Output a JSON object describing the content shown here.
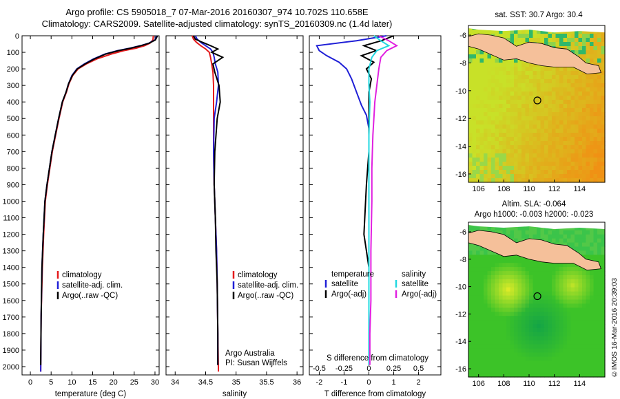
{
  "header": {
    "line1": "Argo profile: CS 5905018_7 07-Mar-2016 20160307_974 10.702S 110.658E",
    "line2": "Climatology: CARS2009. Satellite-adjusted climatology: synTS_20160309.nc (1.4d later)"
  },
  "credit": "©IMOS 16-Mar-2016 20:39:03",
  "colors": {
    "clim": "#e41a1c",
    "sat": "#1f1fd6",
    "argo": "#000000",
    "sat_s": "#22d8e0",
    "argo_s": "#e020e0",
    "land": "#f5c09a"
  },
  "chart_data": [
    {
      "type": "line",
      "id": "temperature",
      "xlabel": "temperature (deg C)",
      "xticks": [
        0,
        5,
        10,
        15,
        20,
        25,
        30
      ],
      "xlim": [
        -2,
        31
      ],
      "yticks": [
        0,
        100,
        200,
        300,
        400,
        500,
        600,
        700,
        800,
        900,
        1000,
        1100,
        1200,
        1300,
        1400,
        1500,
        1600,
        1700,
        1800,
        1900,
        2000
      ],
      "ylim": [
        0,
        2050
      ],
      "y_reversed": true,
      "legend": [
        "climatology",
        "satellite-adj. clim.",
        "Argo(..raw -QC)"
      ],
      "series": [
        {
          "name": "climatology",
          "color": "#e41a1c",
          "x": [
            29.6,
            29.5,
            28.8,
            27.5,
            25.5,
            22.5,
            19.5,
            16.0,
            13.5,
            11.5,
            10.2,
            9.3,
            8.7,
            7.8,
            6.9,
            6.1,
            5.3,
            4.7,
            4.1,
            3.6,
            3.2,
            2.9,
            2.6,
            2.5
          ],
          "y": [
            0,
            25,
            45,
            60,
            75,
            90,
            110,
            140,
            170,
            200,
            240,
            290,
            340,
            400,
            500,
            600,
            700,
            800,
            900,
            1000,
            1200,
            1400,
            1700,
            2030
          ]
        },
        {
          "name": "satellite-adj. clim.",
          "color": "#1f1fd6",
          "x": [
            30.4,
            30.0,
            28.5,
            26.5,
            24.0,
            21.0,
            18.0,
            15.2,
            13.0,
            11.2,
            10.0,
            9.2,
            8.6,
            7.7,
            6.8,
            6.0,
            5.2,
            4.6,
            4.0,
            3.5,
            3.1,
            2.8,
            2.6,
            2.5
          ],
          "y": [
            0,
            25,
            45,
            60,
            75,
            90,
            110,
            140,
            170,
            200,
            240,
            290,
            340,
            400,
            500,
            600,
            700,
            800,
            900,
            1000,
            1200,
            1400,
            1700,
            2030
          ]
        },
        {
          "name": "Argo(..raw -QC)",
          "color": "#000000",
          "x": [
            30.6,
            30.1,
            28.6,
            26.6,
            24.2,
            21.2,
            18.2,
            15.4,
            13.2,
            11.3,
            10.1,
            9.2,
            8.6,
            7.7,
            6.8,
            6.0,
            5.2,
            4.6,
            4.0,
            3.5,
            3.1,
            2.8,
            2.6,
            2.5
          ],
          "y": [
            0,
            25,
            45,
            60,
            75,
            90,
            110,
            140,
            170,
            200,
            240,
            290,
            340,
            400,
            500,
            600,
            700,
            800,
            900,
            1000,
            1200,
            1400,
            1700,
            1990
          ]
        }
      ]
    },
    {
      "type": "line",
      "id": "salinity",
      "xlabel": "salinity",
      "xticks": [
        34,
        34.5,
        35,
        35.5,
        36
      ],
      "xtick_labels": [
        "34",
        "34.5",
        "35",
        "35.5",
        "36"
      ],
      "xlim": [
        33.85,
        36.1
      ],
      "ylim": [
        0,
        2050
      ],
      "y_reversed": true,
      "legend": [
        "climatology",
        "satellite-adj. clim.",
        "Argo(..raw -QC)"
      ],
      "annotations": [
        "Argo Australia",
        "PI: Susan Wijffels"
      ],
      "series": [
        {
          "name": "climatology",
          "color": "#e41a1c",
          "x": [
            34.28,
            34.3,
            34.35,
            34.42,
            34.5,
            34.56,
            34.58,
            34.6,
            34.62,
            34.63,
            34.63,
            34.63,
            34.63,
            34.64,
            34.66,
            34.68,
            34.69,
            34.7,
            34.71
          ],
          "y": [
            0,
            20,
            40,
            60,
            80,
            100,
            130,
            170,
            220,
            300,
            400,
            500,
            700,
            900,
            1100,
            1300,
            1500,
            1800,
            2030
          ]
        },
        {
          "name": "satellite-adj. clim.",
          "color": "#1f1fd6",
          "x": [
            34.33,
            34.36,
            34.42,
            34.5,
            34.58,
            34.62,
            34.64,
            34.66,
            34.7,
            34.71,
            34.68,
            34.64,
            34.63,
            34.64,
            34.66,
            34.68,
            34.69,
            34.7,
            34.7
          ],
          "y": [
            0,
            20,
            40,
            60,
            80,
            100,
            130,
            170,
            220,
            300,
            400,
            500,
            700,
            900,
            1100,
            1300,
            1500,
            1800,
            1990
          ]
        },
        {
          "name": "Argo(..raw -QC)",
          "color": "#000000",
          "x": [
            34.3,
            34.33,
            34.45,
            34.58,
            34.7,
            34.6,
            34.78,
            34.62,
            34.65,
            34.72,
            34.74,
            34.69,
            34.65,
            34.64,
            34.66,
            34.67,
            34.69,
            34.7,
            34.7
          ],
          "y": [
            0,
            20,
            40,
            60,
            80,
            100,
            130,
            170,
            220,
            300,
            400,
            500,
            700,
            900,
            1100,
            1300,
            1500,
            1800,
            1990
          ]
        }
      ]
    },
    {
      "type": "line",
      "id": "difference",
      "xlabel": "T difference from climatology",
      "xlabel_top": "S difference from climatology",
      "xticks": [
        -2,
        -1,
        0,
        1,
        2
      ],
      "xlim": [
        -2.4,
        2.9
      ],
      "xticks_top": [
        -0.5,
        -0.25,
        0,
        0.25,
        0.5
      ],
      "xtick_top_labels": [
        "-0.5",
        "-0.25",
        "0",
        "0.25",
        "0.5"
      ],
      "ylim": [
        0,
        2050
      ],
      "y_reversed": true,
      "legend": {
        "temperature_title": "temperature",
        "salinity_title": "salinity",
        "items": [
          "satellite",
          "Argo(-adj)",
          "satellite",
          "Argo(-adj)"
        ]
      },
      "series": [
        {
          "name": "satellite",
          "quantity": "temperature",
          "color": "#1f1fd6",
          "x": [
            0.7,
            -0.5,
            -2.1,
            -2.0,
            -1.7,
            -1.2,
            -0.9,
            -0.7,
            -0.5,
            -0.3,
            -0.1,
            0.0,
            0.0,
            0.0,
            0.0,
            0.0,
            0.0,
            0.0
          ],
          "y": [
            0,
            30,
            60,
            90,
            120,
            160,
            200,
            260,
            340,
            420,
            480,
            560,
            700,
            900,
            1200,
            1500,
            1800,
            1990
          ]
        },
        {
          "name": "Argo(-adj)",
          "quantity": "temperature",
          "color": "#000000",
          "x": [
            1.0,
            0.5,
            -0.2,
            0.3,
            -0.3,
            0.2,
            -0.1,
            0.1,
            0.0,
            0.0,
            0.0,
            0.0,
            -0.1,
            -0.2,
            0.0,
            0.0,
            0.0
          ],
          "y": [
            0,
            30,
            60,
            90,
            120,
            160,
            200,
            260,
            340,
            420,
            500,
            700,
            900,
            1200,
            1400,
            1700,
            1990
          ]
        },
        {
          "name": "satellite",
          "quantity": "salinity",
          "color": "#22d8e0",
          "x": [
            0.05,
            0.12,
            0.2,
            0.08,
            0.03,
            0.0,
            0.0,
            0.01,
            0.0,
            0.0,
            0.0,
            0.0,
            0.0,
            0.0,
            0.0
          ],
          "y": [
            0,
            30,
            60,
            90,
            130,
            200,
            300,
            400,
            600,
            800,
            1000,
            1300,
            1600,
            1800,
            1990
          ]
        },
        {
          "name": "Argo(-adj)",
          "quantity": "salinity",
          "color": "#e020e0",
          "x": [
            0.1,
            0.2,
            0.28,
            0.18,
            0.12,
            0.1,
            0.08,
            0.06,
            0.04,
            0.03,
            0.03,
            0.02,
            0.02,
            0.01,
            0.01
          ],
          "y": [
            0,
            30,
            60,
            90,
            130,
            200,
            300,
            400,
            600,
            800,
            1000,
            1300,
            1600,
            1800,
            1990
          ]
        }
      ]
    },
    {
      "type": "heatmap",
      "id": "sst_map",
      "title": "sat. SST: 30.7  Argo: 30.4",
      "xticks": [
        106,
        108,
        110,
        112,
        114
      ],
      "yticks": [
        -6,
        -8,
        -10,
        -12,
        -14,
        -16
      ],
      "xlim": [
        105.2,
        116
      ],
      "ylim": [
        -16.6,
        -5.3
      ],
      "argo_position": {
        "lon": 110.658,
        "lat": -10.702
      }
    },
    {
      "type": "heatmap",
      "id": "sla_map",
      "title": "Altim. SLA: -0.064",
      "subtitle": "Argo h1000: -0.003 h2000: -0.023",
      "xticks": [
        106,
        108,
        110,
        112,
        114
      ],
      "yticks": [
        -6,
        -8,
        -10,
        -12,
        -14,
        -16
      ],
      "xlim": [
        105.2,
        116
      ],
      "ylim": [
        -16.6,
        -5.3
      ],
      "argo_position": {
        "lon": 110.658,
        "lat": -10.702
      }
    }
  ]
}
